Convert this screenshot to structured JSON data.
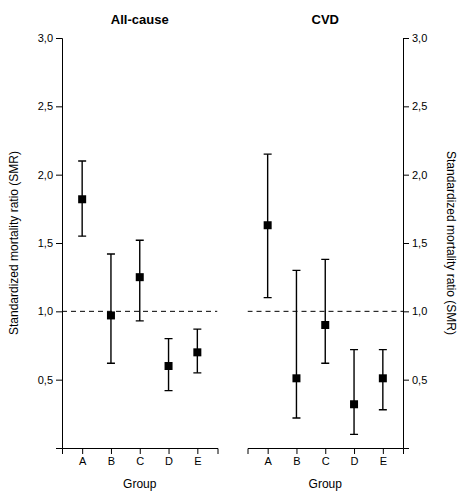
{
  "chart_data": [
    {
      "type": "scatter",
      "title": "All-cause",
      "x_label": "Group",
      "y_label": "Standardized mortality ratio (SMR)",
      "categories": [
        "A",
        "B",
        "C",
        "D",
        "E"
      ],
      "values": [
        1.82,
        0.97,
        1.25,
        0.6,
        0.7
      ],
      "ci_low": [
        1.55,
        0.62,
        0.93,
        0.42,
        0.55
      ],
      "ci_high": [
        2.1,
        1.42,
        1.52,
        0.8,
        0.87
      ],
      "color": "#000000",
      "marker": "square",
      "reference_line": 1.0,
      "ylim": [
        0.0,
        3.0
      ],
      "yticks": [
        {
          "value": 0.5,
          "label": "0,5"
        },
        {
          "value": 1.0,
          "label": "1,0"
        },
        {
          "value": 1.5,
          "label": "1,5"
        },
        {
          "value": 2.0,
          "label": "2,0"
        },
        {
          "value": 2.5,
          "label": "2,5"
        },
        {
          "value": 3.0,
          "label": "3,0"
        }
      ]
    },
    {
      "type": "scatter",
      "title": "CVD",
      "x_label": "Group",
      "y_label": "Standardized mortality ratio (SMR)",
      "categories": [
        "A",
        "B",
        "C",
        "D",
        "E"
      ],
      "values": [
        1.63,
        0.51,
        0.9,
        0.32,
        0.51
      ],
      "ci_low": [
        1.1,
        0.22,
        0.62,
        0.1,
        0.28
      ],
      "ci_high": [
        2.15,
        1.3,
        1.38,
        0.72,
        0.72
      ],
      "color": "#000000",
      "marker": "square",
      "reference_line": 1.0,
      "ylim": [
        0.0,
        3.0
      ],
      "yticks": [
        {
          "value": 0.5,
          "label": "0,5"
        },
        {
          "value": 1.0,
          "label": "1,0"
        },
        {
          "value": 1.5,
          "label": "1,5"
        },
        {
          "value": 2.0,
          "label": "2,0"
        },
        {
          "value": 2.5,
          "label": "2,5"
        },
        {
          "value": 3.0,
          "label": "3,0"
        }
      ]
    }
  ]
}
